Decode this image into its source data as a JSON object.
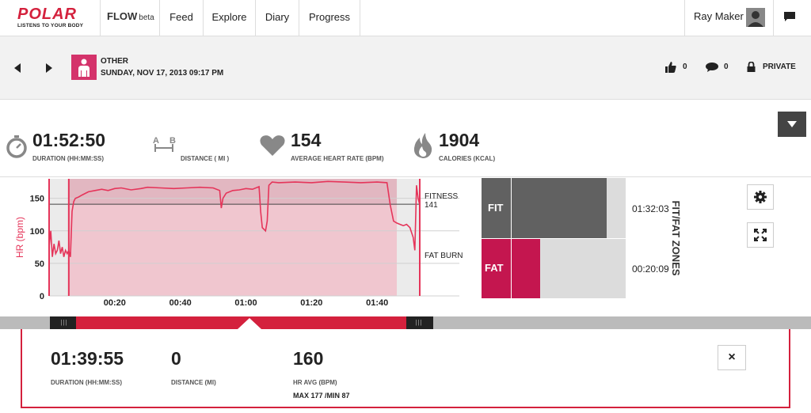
{
  "nav": {
    "logo_word": "POLAR",
    "logo_tagline": "LISTENS TO YOUR BODY",
    "app_name": "FLOW",
    "app_badge": "beta",
    "items": [
      {
        "label": "Feed"
      },
      {
        "label": "Explore"
      },
      {
        "label": "Diary"
      },
      {
        "label": "Progress"
      }
    ],
    "user_name": "Ray Maker",
    "messages_icon": "chat-bubble-icon"
  },
  "session": {
    "sport": "OTHER",
    "date": "SUNDAY, NOV 17, 2013 09:17 PM",
    "likes": "0",
    "comments": "0",
    "privacy": "PRIVATE"
  },
  "summary": {
    "duration": {
      "value": "01:52:50",
      "label": "DURATION (HH:MM:SS)"
    },
    "distance": {
      "value": "",
      "label": "DISTANCE ( MI )",
      "icon_a": "A",
      "icon_b": "B"
    },
    "heart_rate": {
      "value": "154",
      "label": "AVERAGE HEART RATE (BPM)"
    },
    "calories": {
      "value": "1904",
      "label": "CALORIES (KCAL)"
    }
  },
  "chart_data": {
    "type": "line",
    "ylabel": "HR (bpm)",
    "yticks": [
      "0",
      "50",
      "100",
      "150"
    ],
    "xticks": [
      "00:20",
      "00:40",
      "01:00",
      "01:20",
      "01:40"
    ],
    "ylim": [
      0,
      180
    ],
    "xlim_min": [
      0,
      113
    ],
    "threshold": {
      "value": 141,
      "label": "141"
    },
    "zone_labels": [
      "FITNESS",
      "FAT BURN"
    ],
    "selection_min": [
      6,
      106
    ],
    "series": [
      {
        "x": [
          0,
          0.5,
          1,
          1.5,
          2,
          2.5,
          3,
          3.5,
          4,
          4.5,
          5,
          5.5,
          6,
          6.5,
          7,
          7.5,
          8,
          9,
          10,
          12,
          14,
          16,
          18,
          20,
          22,
          25,
          28,
          30,
          34,
          38,
          42,
          46,
          50,
          52,
          52.5,
          53,
          54,
          56,
          58,
          60,
          62,
          64,
          64.5,
          65,
          66,
          66.5,
          67,
          68,
          70,
          75,
          80,
          85,
          90,
          95,
          100,
          103,
          104,
          105,
          106,
          107,
          108,
          109,
          110,
          111,
          111.5,
          112,
          112.5,
          113
        ],
        "values": [
          75,
          100,
          60,
          80,
          65,
          70,
          85,
          65,
          75,
          60,
          70,
          65,
          70,
          60,
          130,
          145,
          150,
          152,
          155,
          160,
          162,
          164,
          162,
          165,
          166,
          163,
          165,
          167,
          166,
          165,
          166,
          167,
          166,
          162,
          135,
          150,
          158,
          162,
          163,
          165,
          164,
          168,
          130,
          105,
          100,
          115,
          170,
          175,
          174,
          175,
          174,
          176,
          175,
          174,
          175,
          174,
          140,
          115,
          112,
          110,
          108,
          110,
          105,
          90,
          70,
          170,
          150,
          140
        ]
      }
    ]
  },
  "zones": {
    "title": "FIT/FAT ZONES",
    "fit": {
      "label": "FIT",
      "time": "01:32:03",
      "fraction": 0.82
    },
    "fat": {
      "label": "FAT",
      "time": "00:20:09",
      "fraction": 0.18
    },
    "colors": {
      "fit": "#616161",
      "fat": "#c4164f",
      "track": "#dcdcdc"
    }
  },
  "selection": {
    "duration": {
      "value": "01:39:55",
      "label": "DURATION (HH:MM:SS)"
    },
    "distance": {
      "value": "0",
      "label": "DISTANCE (MI)"
    },
    "hr_avg": {
      "value": "160",
      "label": "HR AVG (BPM)",
      "detail": "MAX 177 /MIN 87"
    },
    "close_label": "×"
  },
  "colors": {
    "accent": "#d4213d",
    "chart_line": "#e5355a",
    "chart_fill": "#f0c6cf"
  }
}
